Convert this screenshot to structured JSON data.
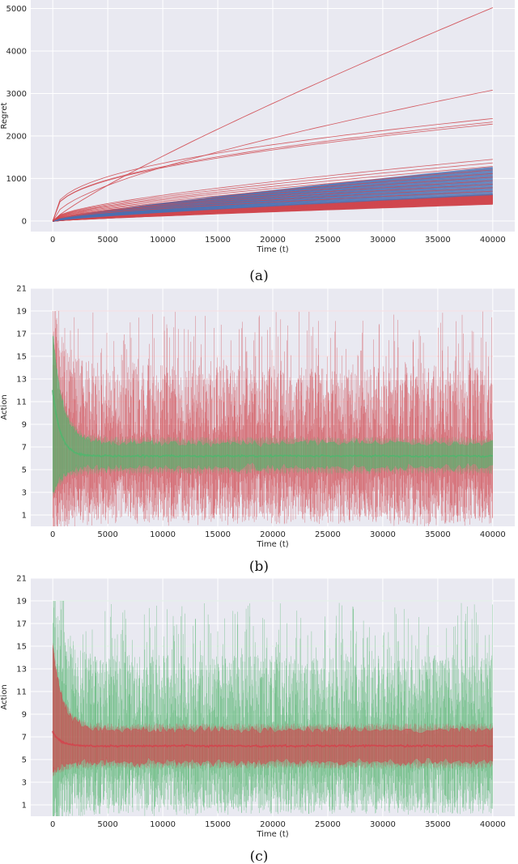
{
  "colors": {
    "plot_background": "#e9e9f1",
    "grid": "#ffffff",
    "red": "#d0484f",
    "blue": "#4c6fb0",
    "green": "#55b46e"
  },
  "chart_data": [
    {
      "type": "line",
      "caption": "(a)",
      "xlabel": "Time (t)",
      "ylabel": "Regret",
      "xlim": [
        -2000,
        42000
      ],
      "ylim": [
        -250,
        5200
      ],
      "xticks": [
        "0",
        "5000",
        "10000",
        "15000",
        "20000",
        "25000",
        "30000",
        "35000",
        "40000"
      ],
      "yticks": [
        "0",
        "1000",
        "2000",
        "3000",
        "4000",
        "5000"
      ],
      "grid": true,
      "series_groups": [
        {
          "color": "red",
          "count": 22,
          "final_regret_range": [
            400,
            620
          ]
        },
        {
          "color": "blue",
          "count": 28,
          "final_regret_range": [
            620,
            1260
          ]
        },
        {
          "color": "red",
          "count": 10,
          "final_regret_range": [
            700,
            1450
          ]
        },
        {
          "color": "red",
          "count": 1,
          "final_regret": 2280
        },
        {
          "color": "red",
          "count": 1,
          "final_regret": 2330
        },
        {
          "color": "red",
          "count": 1,
          "final_regret": 2410
        },
        {
          "color": "red",
          "count": 1,
          "final_regret": 3080
        },
        {
          "color": "red",
          "count": 1,
          "final_regret": 5020
        }
      ]
    },
    {
      "type": "line",
      "caption": "(b)",
      "xlabel": "Time (t)",
      "ylabel": "Action",
      "xlim": [
        -2000,
        42000
      ],
      "ylim": [
        0,
        21
      ],
      "xticks": [
        "0",
        "5000",
        "10000",
        "15000",
        "20000",
        "25000",
        "30000",
        "35000",
        "40000"
      ],
      "yticks": [
        "1",
        "3",
        "5",
        "7",
        "9",
        "11",
        "13",
        "15",
        "17",
        "19",
        "21"
      ],
      "grid": true,
      "series": [
        {
          "color": "red",
          "kind": "noisy-action-trace",
          "range": [
            0,
            19
          ],
          "long_run_mean": 6.2
        },
        {
          "color": "green",
          "kind": "band",
          "upper_start": 17,
          "lower_start": 3,
          "upper_end": 7.3,
          "lower_end": 5.2
        },
        {
          "color": "green",
          "kind": "mean",
          "start": 12,
          "end": 6.2
        }
      ]
    },
    {
      "type": "line",
      "caption": "(c)",
      "xlabel": "Time (t)",
      "ylabel": "Action",
      "xlim": [
        -2000,
        42000
      ],
      "ylim": [
        0,
        21
      ],
      "xticks": [
        "0",
        "5000",
        "10000",
        "15000",
        "20000",
        "25000",
        "30000",
        "35000",
        "40000"
      ],
      "yticks": [
        "1",
        "3",
        "5",
        "7",
        "9",
        "11",
        "13",
        "15",
        "17",
        "19",
        "21"
      ],
      "grid": true,
      "series": [
        {
          "color": "green",
          "kind": "noisy-action-trace",
          "range": [
            0,
            19
          ],
          "long_run_mean": 6.2
        },
        {
          "color": "red",
          "kind": "band",
          "upper_start": 15,
          "lower_start": 4,
          "upper_end": 7.6,
          "lower_end": 4.8
        },
        {
          "color": "red",
          "kind": "mean",
          "start": 7.5,
          "end": 6.2
        }
      ]
    }
  ]
}
